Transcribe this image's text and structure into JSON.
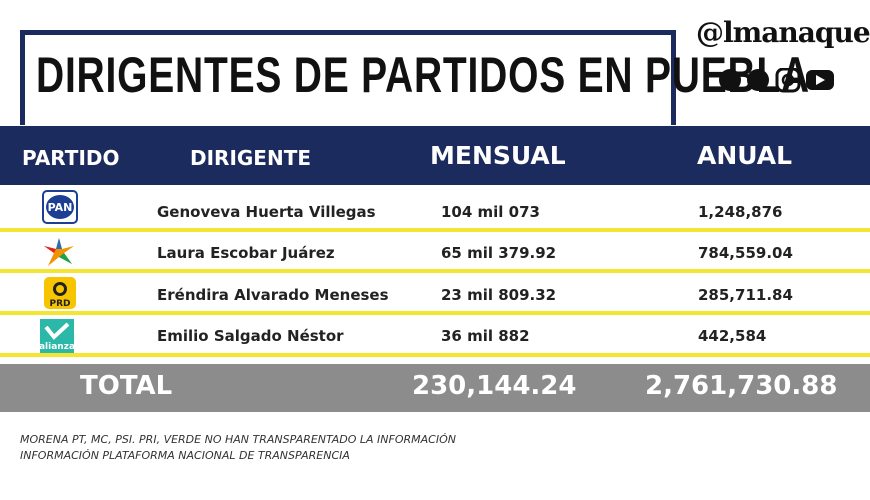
{
  "header": {
    "title": "DIRIGENTES DE PARTIDOS EN PUEBLA",
    "brand": "@lmanaque"
  },
  "table": {
    "columns": [
      "PARTIDO",
      "DIRIGENTE",
      "MENSUAL",
      "ANUAL"
    ],
    "rows": [
      {
        "logo": "PAN",
        "name": "Genoveva Huerta Villegas",
        "mensual": "104 mil 073",
        "anual": "1,248,876"
      },
      {
        "name": "Laura Escobar Juárez",
        "mensual": "65 mil 379.92",
        "anual": "784,559.04"
      },
      {
        "logo": "PRD",
        "name": "Eréndira Alvarado Meneses",
        "mensual": "23 mil 809.32",
        "anual": "285,711.84"
      },
      {
        "logo": "alianza",
        "name": "Emilio Salgado Néstor",
        "mensual": "36 mil 882",
        "anual": "442,584"
      }
    ],
    "total": {
      "label": "TOTAL",
      "mensual": "230,144.24",
      "anual": "2,761,730.88"
    }
  },
  "footnotes": [
    "MORENA PT, MC, PSI. PRI, VERDE NO HAN TRANSPARENTADO LA INFORMACIÓN",
    "INFORMACIÓN PLATAFORMA NACIONAL DE TRANSPARENCIA"
  ]
}
